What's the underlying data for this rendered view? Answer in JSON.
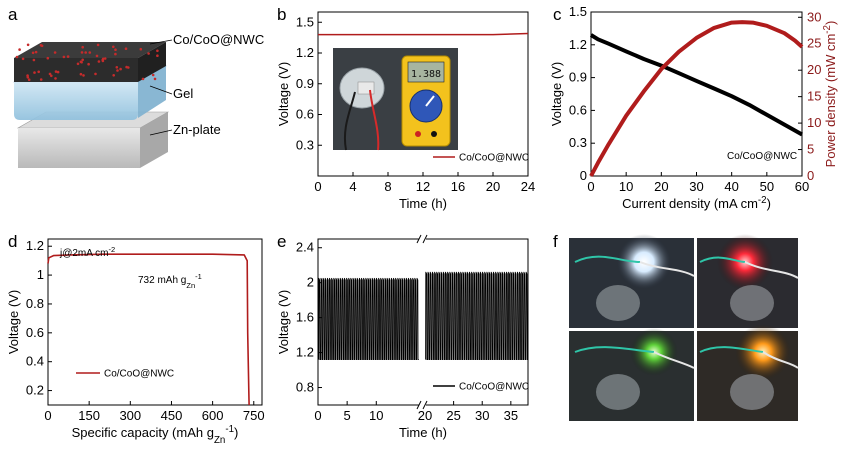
{
  "panel_labels": [
    "a",
    "b",
    "c",
    "d",
    "e",
    "f"
  ],
  "schematic": {
    "layers": [
      "Co/CoO@NWC",
      "Gel",
      "Zn-plate"
    ]
  },
  "photo_b": {
    "meter_reading": "1.388"
  },
  "colors": {
    "black_series": "#000000",
    "red_series": "#b01c1c",
    "red_axis": "#8b1a1a"
  },
  "chart_data": [
    {
      "id": "b",
      "type": "line",
      "xlabel": "Time (h)",
      "ylabel": "Voltage (V)",
      "xlim": [
        0,
        24
      ],
      "ylim": [
        0.0,
        1.6
      ],
      "xticks": [
        0,
        4,
        8,
        12,
        16,
        20,
        24
      ],
      "yticks": [
        0.3,
        0.6,
        0.9,
        1.2,
        1.5
      ],
      "legend": "bottom-right",
      "series": [
        {
          "name": "Co/CoO@NWC",
          "color": "#b01c1c",
          "x": [
            0,
            4,
            8,
            12,
            16,
            20,
            24
          ],
          "y": [
            1.38,
            1.38,
            1.38,
            1.38,
            1.38,
            1.38,
            1.39
          ]
        }
      ]
    },
    {
      "id": "c",
      "type": "line",
      "xlabel": "Current density (mA cm",
      "xlabel_sup": "-2",
      "xlabel_end": ")",
      "ylabel": "Voltage (V)",
      "y2label": "Power density (mW cm",
      "y2label_sup": "-2",
      "y2label_end": ")",
      "xlim": [
        0,
        60
      ],
      "ylim": [
        0.0,
        1.5
      ],
      "y2lim": [
        0,
        31
      ],
      "xticks": [
        0,
        10,
        20,
        30,
        40,
        50,
        60
      ],
      "yticks": [
        0.0,
        0.3,
        0.6,
        0.9,
        1.2,
        1.5
      ],
      "y2ticks": [
        0,
        5,
        10,
        15,
        20,
        25,
        30
      ],
      "annotation": "Co/CoO@NWC",
      "series": [
        {
          "name": "Voltage",
          "axis": "left",
          "color": "#000000",
          "x": [
            0,
            2,
            5,
            10,
            15,
            20,
            25,
            30,
            35,
            40,
            45,
            50,
            55,
            60
          ],
          "y": [
            1.29,
            1.25,
            1.21,
            1.14,
            1.07,
            1.01,
            0.94,
            0.87,
            0.8,
            0.73,
            0.65,
            0.56,
            0.47,
            0.38
          ]
        },
        {
          "name": "Power density",
          "axis": "right",
          "color": "#b01c1c",
          "x": [
            0,
            2,
            5,
            10,
            15,
            20,
            25,
            30,
            35,
            40,
            43,
            46,
            50,
            55,
            58,
            60
          ],
          "y": [
            0,
            2.5,
            6,
            11.4,
            16.0,
            20.2,
            23.5,
            26.1,
            28.0,
            29.0,
            29.1,
            29.0,
            28.4,
            27.0,
            25.6,
            24.4
          ]
        }
      ]
    },
    {
      "id": "d",
      "type": "line",
      "xlabel": "Specific capacity (mAh g",
      "xlabel_sub": "Zn",
      "xlabel_sup": "-1",
      "xlabel_end": ")",
      "ylabel": "Voltage (V)",
      "xlim": [
        0,
        780
      ],
      "ylim": [
        0.1,
        1.25
      ],
      "xticks": [
        0,
        150,
        300,
        450,
        600,
        750
      ],
      "yticks": [
        0.2,
        0.4,
        0.6,
        0.8,
        1.0,
        1.2
      ],
      "annotations": [
        {
          "text": "j@2mA cm",
          "sup": "-2"
        },
        {
          "text": "732 mAh g",
          "sub": "Zn",
          "sup": "-1"
        }
      ],
      "legend": "bottom-left",
      "series": [
        {
          "name": "Co/CoO@NWC",
          "color": "#b01c1c",
          "x": [
            0,
            3,
            20,
            80,
            200,
            400,
            600,
            715,
            726,
            728,
            732,
            733
          ],
          "y": [
            1.08,
            1.12,
            1.135,
            1.14,
            1.145,
            1.145,
            1.145,
            1.14,
            1.1,
            0.6,
            0.2,
            0.1
          ]
        }
      ]
    },
    {
      "id": "e",
      "type": "line",
      "xlabel": "Time (h)",
      "ylabel": "Voltage (V)",
      "xlim": [
        0,
        38
      ],
      "ylim": [
        0.6,
        2.5
      ],
      "xticks": [
        0,
        5,
        10,
        20,
        25,
        30,
        35
      ],
      "yticks": [
        0.8,
        1.2,
        1.6,
        2.0,
        2.4
      ],
      "axis_break": true,
      "legend": "bottom-right",
      "series": [
        {
          "name": "Co/CoO@NWC",
          "color": "#000000",
          "cycles": [
            {
              "t_start": 0.1,
              "t_end": 17.3,
              "n": 47,
              "v_low": 1.12,
              "v_high": 2.05
            },
            {
              "t_start": 20.1,
              "t_end": 38,
              "n": 47,
              "v_low": 1.12,
              "v_high": 2.12
            }
          ]
        }
      ]
    }
  ]
}
